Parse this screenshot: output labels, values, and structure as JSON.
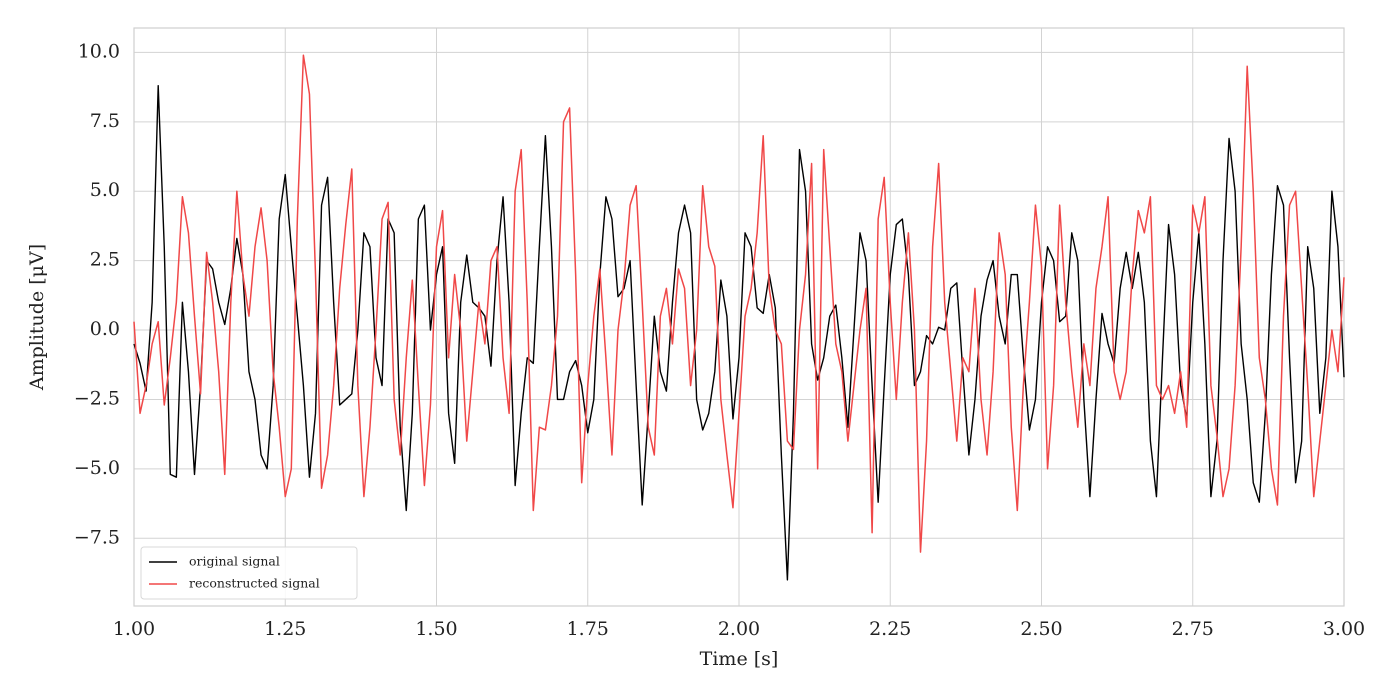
{
  "chart_data": {
    "type": "line",
    "xlabel": "Time [s]",
    "ylabel": "Amplitude [μV]",
    "x": [
      1.0,
      1.01,
      1.02,
      1.03,
      1.04,
      1.05,
      1.06,
      1.07,
      1.08,
      1.09,
      1.1,
      1.11,
      1.12,
      1.13,
      1.14,
      1.15,
      1.16,
      1.17,
      1.18,
      1.19,
      1.2,
      1.21,
      1.22,
      1.23,
      1.24,
      1.25,
      1.26,
      1.27,
      1.28,
      1.29,
      1.3,
      1.31,
      1.32,
      1.33,
      1.34,
      1.35,
      1.36,
      1.37,
      1.38,
      1.39,
      1.4,
      1.41,
      1.42,
      1.43,
      1.44,
      1.45,
      1.46,
      1.47,
      1.48,
      1.49,
      1.5,
      1.51,
      1.52,
      1.53,
      1.54,
      1.55,
      1.56,
      1.57,
      1.58,
      1.59,
      1.6,
      1.61,
      1.62,
      1.63,
      1.64,
      1.65,
      1.66,
      1.67,
      1.68,
      1.69,
      1.7,
      1.71,
      1.72,
      1.73,
      1.74,
      1.75,
      1.76,
      1.77,
      1.78,
      1.79,
      1.8,
      1.81,
      1.82,
      1.83,
      1.84,
      1.85,
      1.86,
      1.87,
      1.88,
      1.89,
      1.9,
      1.91,
      1.92,
      1.93,
      1.94,
      1.95,
      1.96,
      1.97,
      1.98,
      1.99,
      2.0,
      2.01,
      2.02,
      2.03,
      2.04,
      2.05,
      2.06,
      2.07,
      2.08,
      2.09,
      2.1,
      2.11,
      2.12,
      2.13,
      2.14,
      2.15,
      2.16,
      2.17,
      2.18,
      2.19,
      2.2,
      2.21,
      2.22,
      2.23,
      2.24,
      2.25,
      2.26,
      2.27,
      2.28,
      2.29,
      2.3,
      2.31,
      2.32,
      2.33,
      2.34,
      2.35,
      2.36,
      2.37,
      2.38,
      2.39,
      2.4,
      2.41,
      2.42,
      2.43,
      2.44,
      2.45,
      2.46,
      2.47,
      2.48,
      2.49,
      2.5,
      2.51,
      2.52,
      2.53,
      2.54,
      2.55,
      2.56,
      2.57,
      2.58,
      2.59,
      2.6,
      2.61,
      2.62,
      2.63,
      2.64,
      2.65,
      2.66,
      2.67,
      2.68,
      2.69,
      2.7,
      2.71,
      2.72,
      2.73,
      2.74,
      2.75,
      2.76,
      2.77,
      2.78,
      2.79,
      2.8,
      2.81,
      2.82,
      2.83,
      2.84,
      2.85,
      2.86,
      2.87,
      2.88,
      2.89,
      2.9,
      2.91,
      2.92,
      2.93,
      2.94,
      2.95,
      2.96,
      2.97,
      2.98,
      2.99,
      3.0
    ],
    "series": [
      {
        "name": "original signal",
        "color": "#000000",
        "values": [
          -0.5,
          -1.2,
          -2.2,
          1,
          8.8,
          3,
          -5.2,
          -5.3,
          1,
          -1.5,
          -5.2,
          -2,
          2.5,
          2.2,
          1,
          0.2,
          1.5,
          3.3,
          2,
          -1.5,
          -2.5,
          -4.5,
          -5,
          -2,
          4,
          5.6,
          3,
          0.5,
          -2,
          -5.3,
          -3,
          4.5,
          5.5,
          1,
          -2.7,
          -2.5,
          -2.3,
          0,
          3.5,
          3,
          -1,
          -2,
          4,
          3.5,
          -3.5,
          -6.5,
          -3,
          4,
          4.5,
          0,
          2,
          3,
          -3,
          -4.8,
          1,
          2.7,
          1,
          0.8,
          0.5,
          -1.3,
          2.5,
          4.8,
          1,
          -5.6,
          -3,
          -1,
          -1.2,
          3,
          7,
          3,
          -2.5,
          -2.5,
          -1.5,
          -1.1,
          -2,
          -3.7,
          -2.5,
          2,
          4.8,
          4,
          1.2,
          1.5,
          2.5,
          -2,
          -6.3,
          -3,
          0.5,
          -1.5,
          -2.2,
          1,
          3.5,
          4.5,
          3.5,
          -2.5,
          -3.6,
          -3,
          -1.5,
          1.8,
          0.5,
          -3.2,
          -1,
          3.5,
          3,
          0.8,
          0.6,
          2,
          0.8,
          -4.5,
          -9,
          -3,
          6.5,
          5,
          -0.5,
          -1.8,
          -1,
          0.5,
          0.9,
          -1,
          -3.5,
          0,
          3.5,
          2.5,
          -2,
          -6.2,
          -2,
          2,
          3.8,
          4,
          2,
          -2,
          -1.5,
          -0.2,
          -0.5,
          0.1,
          0,
          1.5,
          1.7,
          -1.5,
          -4.5,
          -2.5,
          0.5,
          1.8,
          2.5,
          0.5,
          -0.5,
          2,
          2,
          -1,
          -3.6,
          -2.5,
          1,
          3,
          2.5,
          0.3,
          0.5,
          3.5,
          2.5,
          -2.5,
          -6,
          -2.5,
          0.6,
          -0.5,
          -1.2,
          1.5,
          2.8,
          1.5,
          2.8,
          1,
          -4,
          -6,
          -1,
          3.8,
          2,
          -2,
          -3.2,
          1,
          3.5,
          -0.5,
          -6,
          -4,
          2.5,
          6.9,
          5,
          -0.5,
          -2.5,
          -5.5,
          -6.2,
          -3,
          2,
          5.2,
          4.5,
          -1,
          -5.5,
          -4,
          3,
          1.5,
          -3,
          -1,
          5,
          3,
          -1.7
        ]
      },
      {
        "name": "reconstructed signal",
        "color": "#f04848",
        "values": [
          0.3,
          -3,
          -2,
          -0.5,
          0.3,
          -2.7,
          -1,
          1,
          4.8,
          3.5,
          0.5,
          -2.3,
          2.8,
          1,
          -1.5,
          -5.2,
          1,
          5,
          2,
          0.5,
          3,
          4.4,
          2.5,
          -1.5,
          -3.5,
          -6,
          -5,
          4,
          9.9,
          8.5,
          2,
          -5.7,
          -4.5,
          -2,
          1.5,
          3.8,
          5.8,
          -2,
          -6,
          -3.5,
          0,
          4,
          4.6,
          -2.5,
          -4.5,
          -1,
          1.8,
          -2,
          -5.6,
          -2.7,
          3,
          4.3,
          -1,
          2,
          0,
          -4,
          -1.5,
          1,
          -0.5,
          2.5,
          3,
          -1,
          -3,
          5,
          6.5,
          1,
          -6.5,
          -3.5,
          -3.6,
          -2,
          0.5,
          7.5,
          8,
          2,
          -5.5,
          -2,
          0.5,
          2.2,
          -1,
          -4.5,
          0,
          1.8,
          4.5,
          5.2,
          1,
          -3.5,
          -4.5,
          0.5,
          1.5,
          -0.5,
          2.2,
          1.5,
          -2,
          0,
          5.2,
          3,
          2.3,
          -2.5,
          -4.5,
          -6.4,
          -3,
          0.5,
          1.5,
          3.5,
          7,
          1.5,
          0,
          -0.5,
          -4,
          -4.3,
          0,
          2,
          6,
          -5,
          6.5,
          3,
          -0.5,
          -1.5,
          -4,
          -2,
          0,
          1.5,
          -7.3,
          4,
          5.5,
          1,
          -2.5,
          1,
          3.5,
          0,
          -8,
          -4,
          3,
          6,
          1,
          -1.5,
          -4,
          -1,
          -1.5,
          1.5,
          -2.5,
          -4.5,
          -1.5,
          3.5,
          2,
          -3.5,
          -6.5,
          -2,
          1,
          4.5,
          2.3,
          -5,
          -2,
          4.5,
          1,
          -1.5,
          -3.5,
          -0.5,
          -2,
          1.5,
          3,
          4.8,
          -1.5,
          -2.5,
          -1.5,
          2,
          4.3,
          3.5,
          4.8,
          -2,
          -2.5,
          -2,
          -3,
          -1.5,
          -3.5,
          4.5,
          3.5,
          4.8,
          -2,
          -3.8,
          -6,
          -5,
          -2,
          3,
          9.5,
          5,
          -1,
          -2.5,
          -5,
          -6.3,
          0.5,
          4.5,
          5,
          1.5,
          -2,
          -6,
          -4,
          -2,
          0,
          -1.5,
          1.9
        ]
      }
    ],
    "xlim": [
      1,
      3
    ],
    "xticks": [
      {
        "value": 1,
        "label": "1.00"
      },
      {
        "value": 1.25,
        "label": "1.25"
      },
      {
        "value": 1.5,
        "label": "1.50"
      },
      {
        "value": 1.75,
        "label": "1.75"
      },
      {
        "value": 2,
        "label": "2.00"
      },
      {
        "value": 2.25,
        "label": "2.25"
      },
      {
        "value": 2.5,
        "label": "2.50"
      },
      {
        "value": 2.75,
        "label": "2.75"
      },
      {
        "value": 3,
        "label": "3.00"
      }
    ],
    "ylim": [
      -9.94,
      10.88
    ],
    "yticks": [
      {
        "value": -7.5,
        "label": "−7.5"
      },
      {
        "value": -5,
        "label": "−5.0"
      },
      {
        "value": -2.5,
        "label": "−2.5"
      },
      {
        "value": 0,
        "label": "0.0"
      },
      {
        "value": 2.5,
        "label": "2.5"
      },
      {
        "value": 5,
        "label": "5.0"
      },
      {
        "value": 7.5,
        "label": "7.5"
      },
      {
        "value": 10,
        "label": "10.0"
      }
    ],
    "grid": true,
    "legend": "lower left"
  }
}
